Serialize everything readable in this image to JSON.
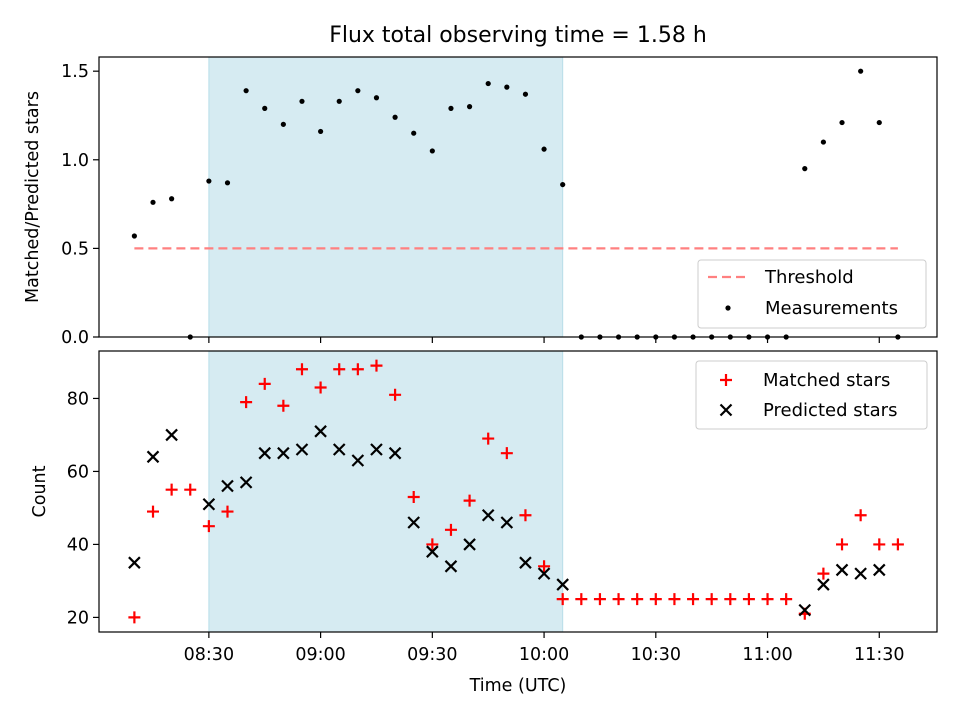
{
  "chart_data": [
    {
      "type": "scatter",
      "title": "Flux total observing time = 1.58 h",
      "xlabel": "",
      "ylabel": "Matched/Predicted stars",
      "ylim": [
        0,
        1.58
      ],
      "yticks": [
        "0.0",
        "0.5",
        "1.0",
        "1.5"
      ],
      "grid": false,
      "legend_placement": "lower-right",
      "highlight_span": {
        "x_start": "08:30",
        "x_end": "10:05",
        "color": "#add8e6"
      },
      "series": [
        {
          "name": "Threshold",
          "kind": "dashed-line",
          "color": "#ff8080",
          "x": [
            "08:10",
            "11:35"
          ],
          "y": [
            0.5,
            0.5
          ]
        },
        {
          "name": "Measurements",
          "kind": "points",
          "color": "#000000",
          "x": [
            "08:10",
            "08:15",
            "08:20",
            "08:25",
            "08:30",
            "08:35",
            "08:40",
            "08:45",
            "08:50",
            "08:55",
            "09:00",
            "09:05",
            "09:10",
            "09:15",
            "09:20",
            "09:25",
            "09:30",
            "09:35",
            "09:40",
            "09:45",
            "09:50",
            "09:55",
            "10:00",
            "10:05",
            "10:10",
            "10:15",
            "10:20",
            "10:25",
            "10:30",
            "10:35",
            "10:40",
            "10:45",
            "10:50",
            "10:55",
            "11:00",
            "11:05",
            "11:10",
            "11:15",
            "11:20",
            "11:25",
            "11:30",
            "11:35"
          ],
          "y": [
            0.57,
            0.76,
            0.78,
            0.0,
            0.88,
            0.87,
            1.39,
            1.29,
            1.2,
            1.33,
            1.16,
            1.33,
            1.39,
            1.35,
            1.24,
            1.15,
            1.05,
            1.29,
            1.3,
            1.43,
            1.41,
            1.37,
            1.06,
            0.86,
            0.0,
            0.0,
            0.0,
            0.0,
            0.0,
            0.0,
            0.0,
            0.0,
            0.0,
            0.0,
            0.0,
            0.0,
            0.95,
            1.1,
            1.21,
            1.5,
            1.21,
            0.0
          ]
        }
      ]
    },
    {
      "type": "scatter",
      "title": "",
      "xlabel": "Time (UTC)",
      "ylabel": "Count",
      "ylim": [
        16,
        93
      ],
      "yticks": [
        "20",
        "40",
        "60",
        "80"
      ],
      "xticks": [
        "08:30",
        "09:00",
        "09:30",
        "10:00",
        "10:30",
        "11:00",
        "11:30"
      ],
      "grid": false,
      "legend_placement": "top-right",
      "highlight_span": {
        "x_start": "08:30",
        "x_end": "10:05",
        "color": "#add8e6"
      },
      "series": [
        {
          "name": "Matched stars",
          "marker": "+",
          "color": "#ff0000",
          "x": [
            "08:10",
            "08:15",
            "08:20",
            "08:25",
            "08:30",
            "08:35",
            "08:40",
            "08:45",
            "08:50",
            "08:55",
            "09:00",
            "09:05",
            "09:10",
            "09:15",
            "09:20",
            "09:25",
            "09:30",
            "09:35",
            "09:40",
            "09:45",
            "09:50",
            "09:55",
            "10:00",
            "10:05",
            "10:10",
            "10:15",
            "10:20",
            "10:25",
            "10:30",
            "10:35",
            "10:40",
            "10:45",
            "10:50",
            "10:55",
            "11:00",
            "11:05",
            "11:10",
            "11:15",
            "11:20",
            "11:25",
            "11:30",
            "11:35"
          ],
          "y": [
            20,
            49,
            55,
            55,
            45,
            49,
            79,
            84,
            78,
            88,
            83,
            88,
            88,
            89,
            81,
            53,
            40,
            44,
            52,
            69,
            65,
            48,
            34,
            25,
            25,
            25,
            25,
            25,
            25,
            25,
            25,
            25,
            25,
            25,
            25,
            25,
            21,
            32,
            40,
            48,
            40,
            40
          ]
        },
        {
          "name": "Predicted stars",
          "marker": "x",
          "color": "#000000",
          "x": [
            "08:10",
            "08:15",
            "08:20",
            "08:30",
            "08:35",
            "08:40",
            "08:45",
            "08:50",
            "08:55",
            "09:00",
            "09:05",
            "09:10",
            "09:15",
            "09:20",
            "09:25",
            "09:30",
            "09:35",
            "09:40",
            "09:45",
            "09:50",
            "09:55",
            "10:00",
            "10:05",
            "11:10",
            "11:15",
            "11:20",
            "11:25",
            "11:30"
          ],
          "y": [
            35,
            64,
            70,
            51,
            56,
            57,
            65,
            65,
            66,
            71,
            66,
            63,
            66,
            65,
            46,
            38,
            34,
            40,
            48,
            46,
            35,
            32,
            29,
            22,
            29,
            33,
            32,
            33
          ]
        }
      ]
    }
  ]
}
